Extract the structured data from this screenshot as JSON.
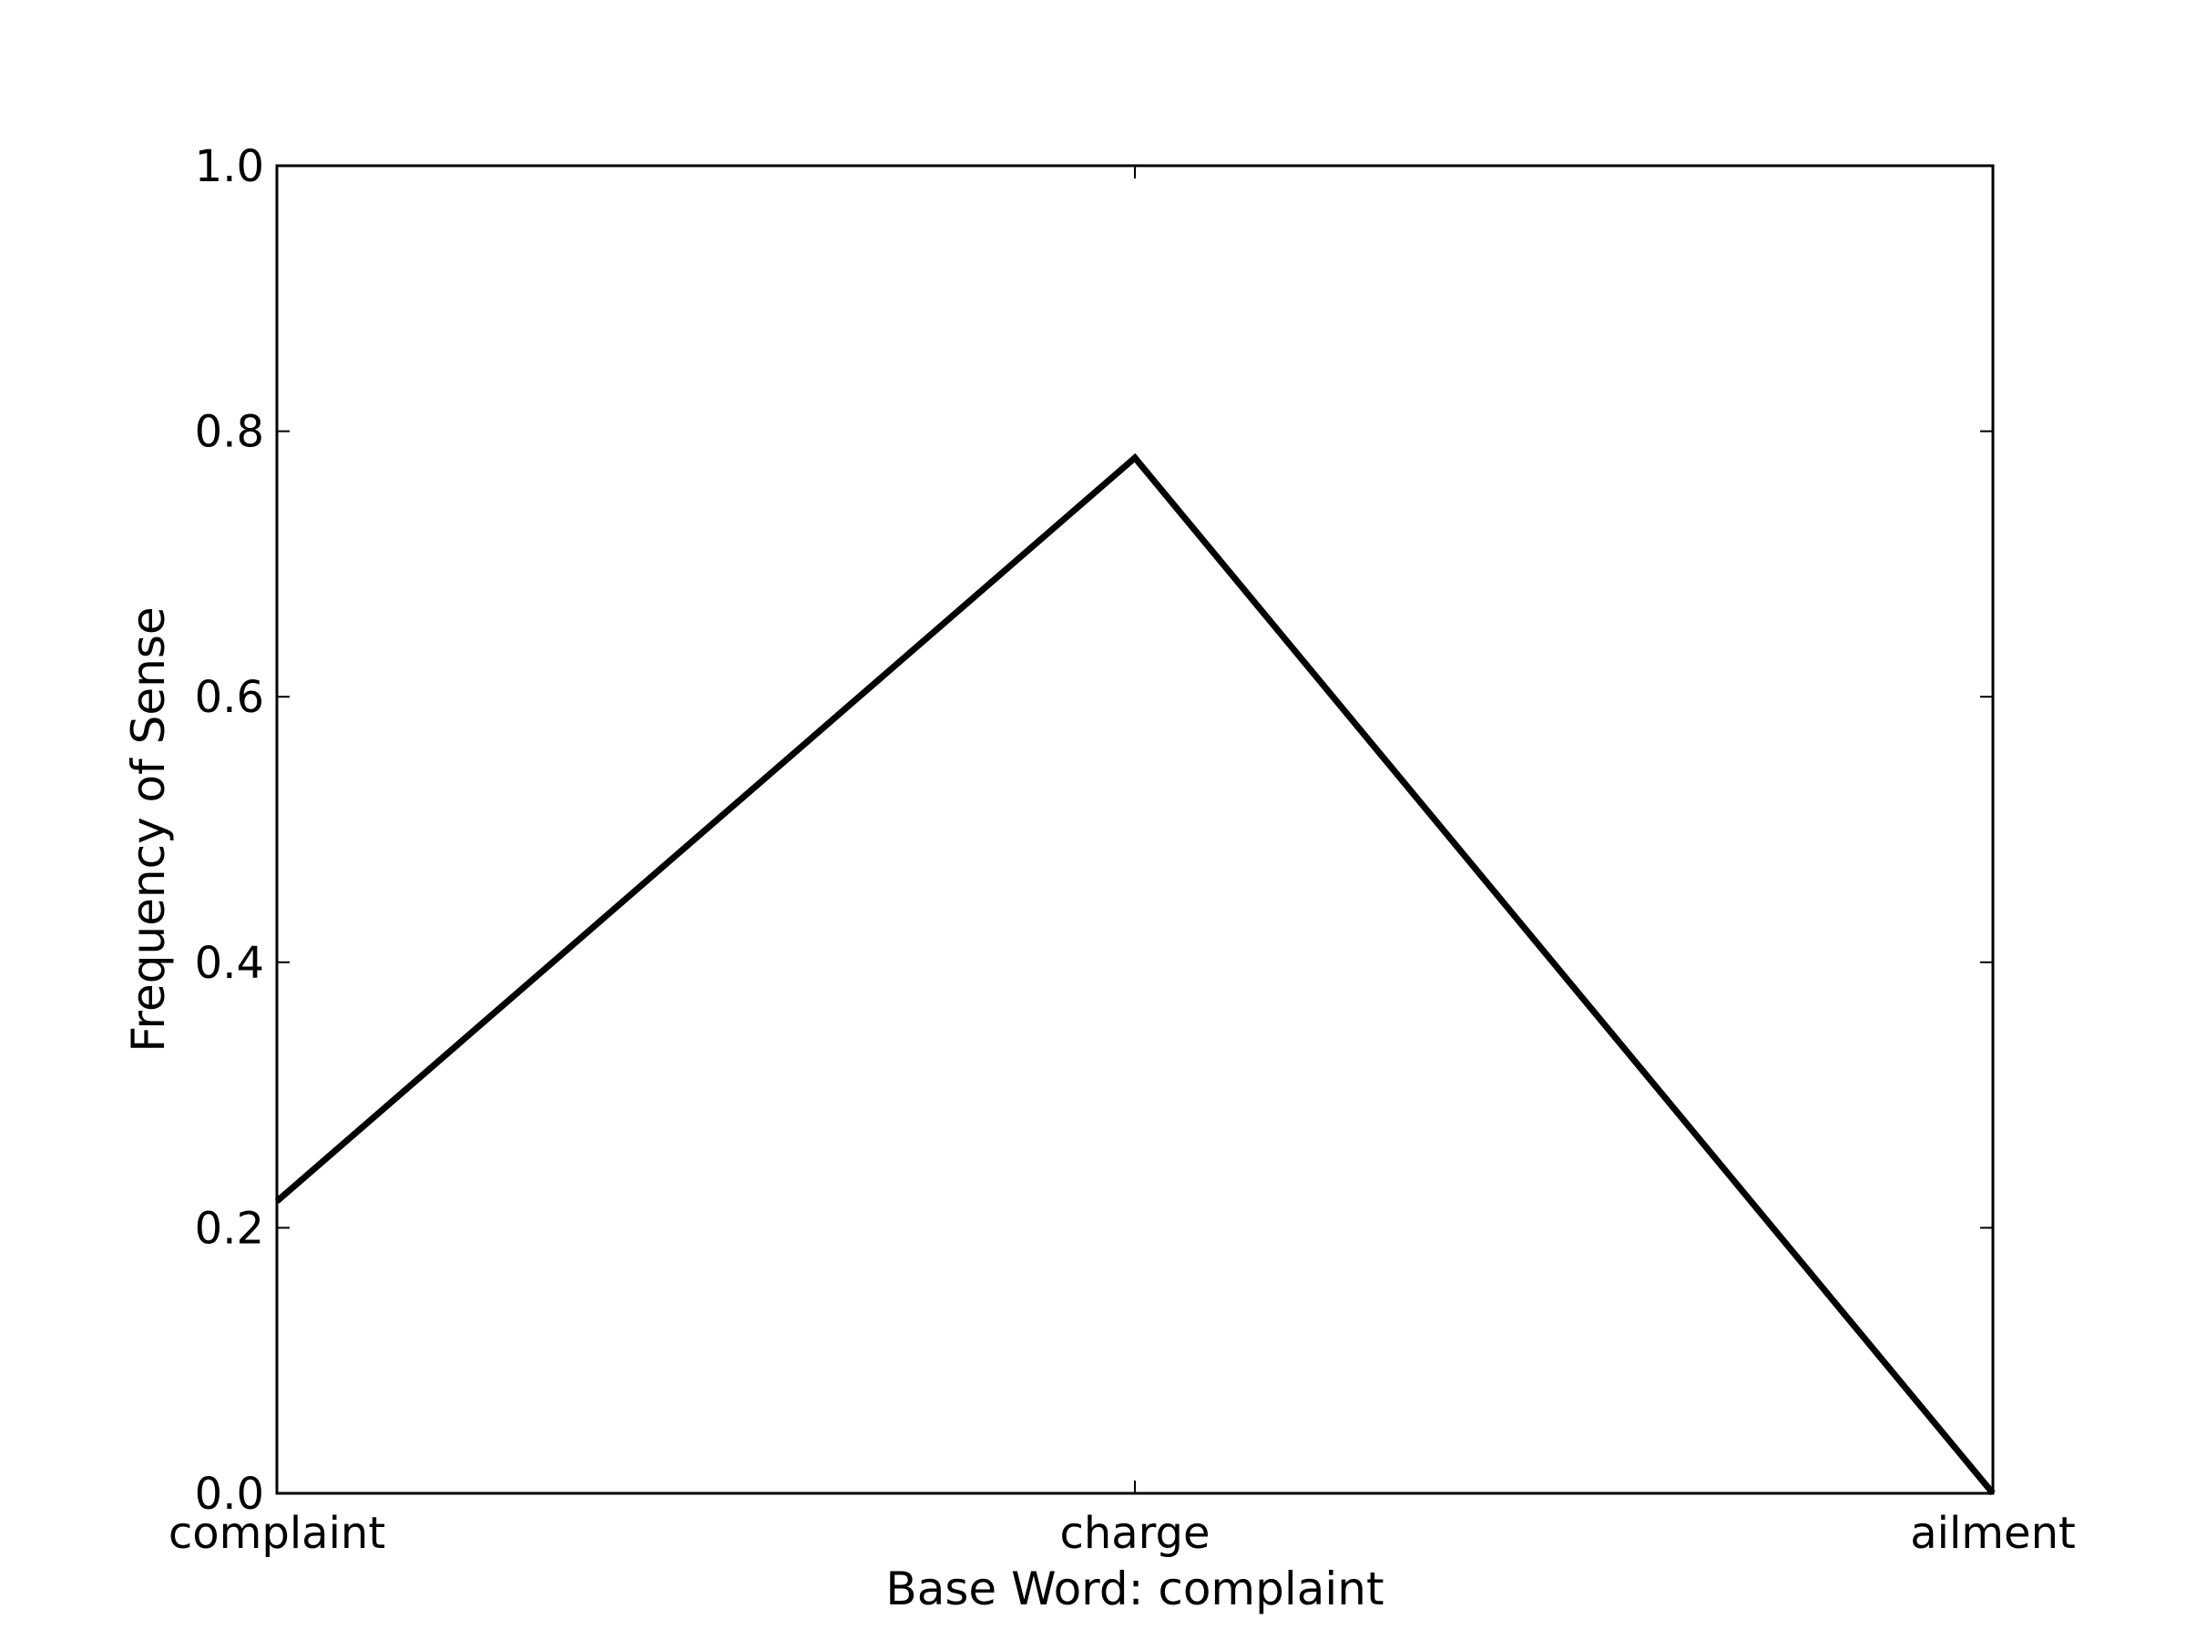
{
  "chart_data": {
    "type": "line",
    "title": "",
    "xlabel": "Base Word: complaint",
    "ylabel": "Frequency of Sense",
    "categories": [
      "complaint",
      "charge",
      "ailment"
    ],
    "series": [
      {
        "values": [
          0.22,
          0.78,
          0.0
        ],
        "color": "#000000"
      }
    ],
    "ylim": [
      0.0,
      1.0
    ],
    "yticks": [
      "0.0",
      "0.2",
      "0.4",
      "0.6",
      "0.8",
      "1.0"
    ],
    "grid": false,
    "legend": false
  }
}
